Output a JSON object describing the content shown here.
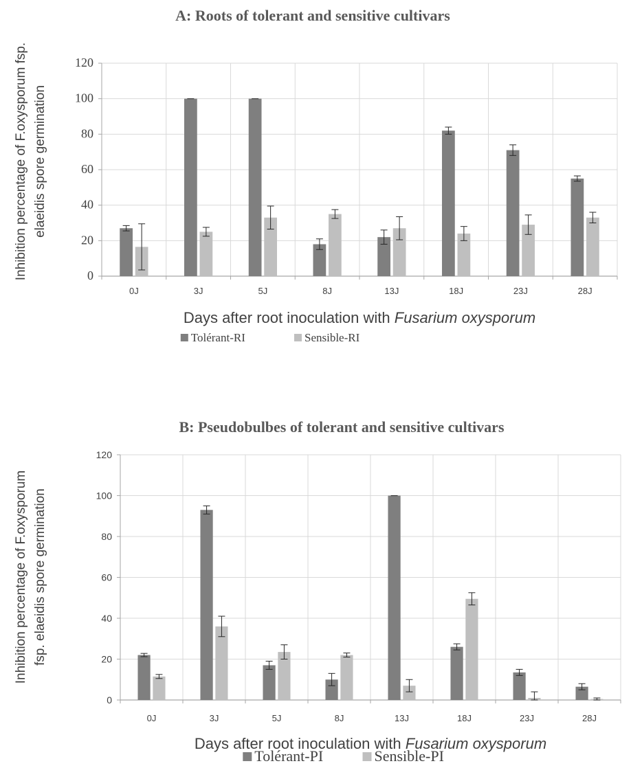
{
  "chart_data": [
    {
      "type": "bar",
      "title": "A: Roots of tolerant and sensitive cultivars",
      "xlabel": "Days after root inoculation with ",
      "xlabel_italic": "Fusarium oxysporum",
      "ylabel_line1": "Inhibition percentage of F.oxysporum fsp.",
      "ylabel_line2": "elaeidis spore germination",
      "categories": [
        "0J",
        "3J",
        "5J",
        "8J",
        "13J",
        "18J",
        "23J",
        "28J"
      ],
      "ylim": [
        0,
        120
      ],
      "yticks": [
        0,
        20,
        40,
        60,
        80,
        100,
        120
      ],
      "grid": true,
      "legend_position": "bottom",
      "series": [
        {
          "name": "Tolérant-RI",
          "color": "#7f7f7f",
          "values": [
            27,
            100,
            100,
            18,
            22,
            82,
            71,
            55
          ],
          "errors": [
            1.5,
            0,
            0,
            3,
            4,
            2,
            3,
            1.5
          ]
        },
        {
          "name": "Sensible-RI",
          "color": "#bfbfbf",
          "values": [
            16.5,
            25,
            33,
            35,
            27,
            24,
            29,
            33
          ],
          "errors": [
            13,
            2.5,
            6.5,
            2.5,
            6.5,
            4,
            5.5,
            3
          ]
        }
      ]
    },
    {
      "type": "bar",
      "title": "B: Pseudobulbes of tolerant and sensitive cultivars",
      "xlabel": "Days after root inoculation with ",
      "xlabel_italic": "Fusarium oxysporum",
      "ylabel_line1": "Inhibition percentage of F.oxysporum",
      "ylabel_line2": "fsp. elaeidis spore germination",
      "categories": [
        "0J",
        "3J",
        "5J",
        "8J",
        "13J",
        "18J",
        "23J",
        "28J"
      ],
      "ylim": [
        0,
        120
      ],
      "yticks": [
        0,
        20,
        40,
        60,
        80,
        100,
        120
      ],
      "grid": true,
      "legend_position": "bottom",
      "series": [
        {
          "name": "Tolérant-PI",
          "color": "#7f7f7f",
          "values": [
            22,
            93,
            17,
            10,
            100,
            26,
            13.5,
            6.5
          ],
          "errors": [
            0.8,
            2,
            2,
            3,
            0,
            1.5,
            1.5,
            1.5
          ]
        },
        {
          "name": "Sensible-PI",
          "color": "#bfbfbf",
          "values": [
            11.5,
            36,
            23.5,
            22,
            7,
            49.5,
            1,
            0.5
          ],
          "errors": [
            1,
            5,
            3.5,
            1,
            3,
            3,
            3,
            0.5
          ]
        }
      ]
    }
  ]
}
